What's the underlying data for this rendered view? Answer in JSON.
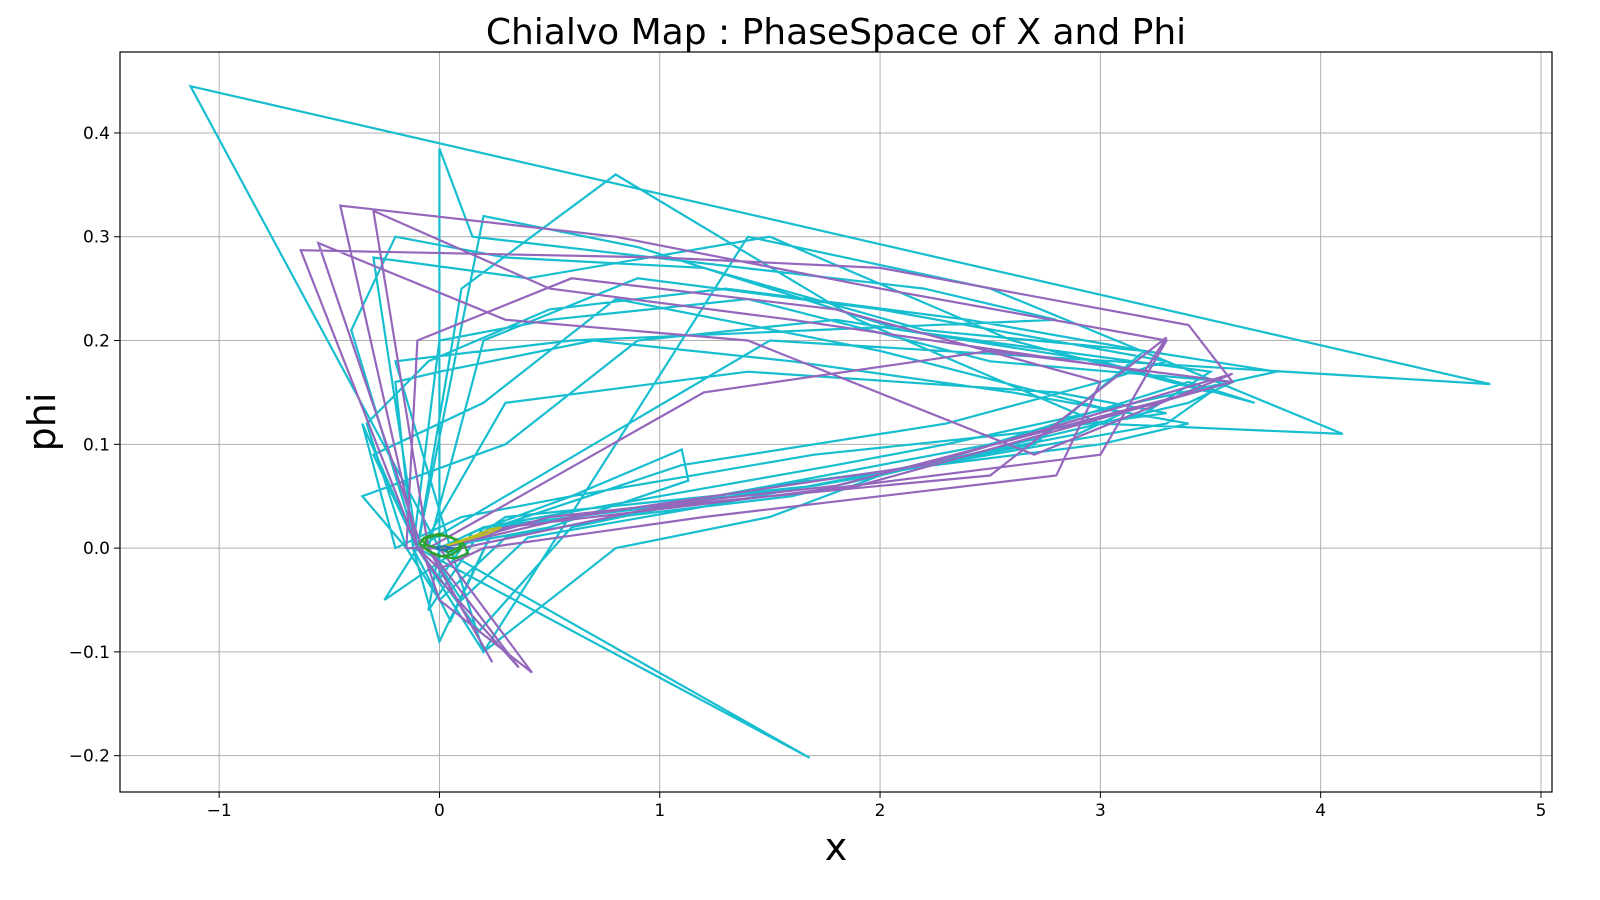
{
  "chart_data": {
    "type": "line",
    "title": "Chialvo Map : PhaseSpace of X and Phi",
    "xlabel": "x",
    "ylabel": "phi",
    "xlim": [
      -1.45,
      5.05
    ],
    "ylim": [
      -0.235,
      0.478
    ],
    "grid": true,
    "legend": "none",
    "xticks": [
      -1,
      0,
      1,
      2,
      3,
      4,
      5
    ],
    "yticks": [
      -0.2,
      -0.1,
      0.0,
      0.1,
      0.2,
      0.3,
      0.4
    ],
    "xtick_labels": [
      "−1",
      "0",
      "1",
      "2",
      "3",
      "4",
      "5"
    ],
    "ytick_labels": [
      "−0.2",
      "−0.1",
      "0.0",
      "0.1",
      "0.2",
      "0.3",
      "0.4"
    ],
    "series": [
      {
        "color": "#17becf",
        "x": [
          0.0,
          0.2,
          1.0,
          2.5,
          3.4,
          3.7,
          3.0,
          1.8,
          0.9,
          0.3,
          -0.35,
          -0.15,
          0.0,
          -1.13,
          4.77,
          1.5,
          -0.1,
          -0.25,
          0.3,
          1.7,
          3.3,
          3.5,
          2.6,
          1.5,
          0.4,
          -0.3,
          -0.1,
          0.0,
          0.0,
          0.15,
          2.2,
          2.8,
          0.6,
          -0.2,
          0.05,
          0.2,
          1.4,
          2.5,
          4.1,
          3.0,
          1.9,
          0.8,
          0.1,
          -0.1,
          -0.35,
          -0.2,
          0.1,
          0.6,
          1.1,
          1.13,
          0.5,
          0.0,
          -0.05,
          0.2,
          1.0,
          1.8,
          2.3,
          3.8,
          3.2,
          2.2,
          1.2,
          0.3,
          -0.2,
          -0.4,
          -0.1,
          0.2,
          0.8,
          1.5,
          2.0,
          3.4,
          3.6,
          2.5,
          1.4,
          0.5,
          0.0,
          -0.12,
          0.05,
          0.25,
          1.7,
          2.7,
          3.2,
          2.4,
          1.3,
          0.5,
          -0.05,
          -0.33,
          -0.15,
          0.0,
          0.3,
          0.8,
          1.6,
          2.2,
          3.2,
          3.5,
          2.1,
          0.9,
          0.2,
          -0.1,
          0.18,
          0.6,
          1.5,
          3.0,
          3.4,
          2.6,
          1.6,
          0.7,
          0.0,
          -0.2,
          -0.12,
          0.0,
          0.25,
          1.1,
          2.3,
          3.0,
          3.3,
          2.0,
          0.9,
          0.2,
          -0.05,
          0.1,
          0.4,
          1.2,
          2.9,
          3.1,
          2.0,
          0.8,
          0.2,
          -0.3,
          -0.1,
          1.68,
          0.0,
          0.0,
          0.15,
          0.6,
          1.7,
          2.6,
          3.3,
          2.8,
          1.4,
          0.3,
          -0.08,
          0.0
        ],
        "y": [
          0.0,
          0.02,
          0.04,
          0.1,
          0.16,
          0.14,
          0.18,
          0.22,
          0.2,
          0.1,
          0.05,
          0.0,
          0.0,
          0.445,
          0.158,
          0.2,
          0.0,
          -0.05,
          0.03,
          0.06,
          0.12,
          0.15,
          0.2,
          0.3,
          0.26,
          0.28,
          0.0,
          -0.03,
          0.385,
          0.3,
          0.25,
          0.22,
          0.2,
          0.18,
          0.0,
          -0.1,
          0.3,
          0.25,
          0.11,
          0.12,
          0.22,
          0.36,
          0.25,
          0.0,
          0.12,
          0.0,
          0.03,
          0.05,
          0.095,
          0.065,
          0.02,
          0.0,
          -0.06,
          0.02,
          0.05,
          0.08,
          0.1,
          0.17,
          0.19,
          0.21,
          0.27,
          0.28,
          0.3,
          0.21,
          0.0,
          -0.1,
          0.0,
          0.03,
          0.07,
          0.14,
          0.16,
          0.18,
          0.24,
          0.22,
          0.2,
          0.0,
          -0.07,
          0.02,
          0.06,
          0.1,
          0.19,
          0.22,
          0.25,
          0.23,
          0.18,
          0.12,
          0.0,
          -0.05,
          0.01,
          0.03,
          0.05,
          0.08,
          0.13,
          0.17,
          0.21,
          0.29,
          0.32,
          0.0,
          -0.08,
          0.02,
          0.06,
          0.1,
          0.12,
          0.15,
          0.18,
          0.2,
          0.17,
          0.16,
          0.0,
          -0.09,
          0.02,
          0.08,
          0.12,
          0.16,
          0.18,
          0.23,
          0.26,
          0.2,
          0.0,
          -0.05,
          0.01,
          0.04,
          0.11,
          0.13,
          0.19,
          0.24,
          0.14,
          0.09,
          0.0,
          -0.202,
          0.0,
          -0.03,
          0.015,
          0.05,
          0.09,
          0.11,
          0.13,
          0.15,
          0.17,
          0.14,
          0.0,
          0.0
        ]
      },
      {
        "color": "#9467bd",
        "x": [
          0.0,
          0.3,
          1.5,
          3.0,
          3.3,
          2.0,
          0.8,
          -0.45,
          -0.1,
          0.0,
          0.24,
          -0.05,
          0.0,
          0.5,
          1.8,
          3.6,
          3.4,
          2.0,
          1.0,
          -0.63,
          -0.1,
          0.0,
          0.36,
          -0.05,
          0.0,
          0.6,
          2.2,
          3.6,
          2.7,
          1.4,
          0.3,
          -0.55,
          -0.08,
          0.0,
          0.42,
          0.0,
          0.1,
          1.0,
          2.5,
          3.3,
          3.2,
          1.6,
          0.5,
          -0.3,
          -0.05,
          0.0,
          0.2,
          1.2,
          2.8,
          3.0,
          1.8,
          0.6,
          -0.1,
          -0.15,
          0.0,
          0.3,
          1.9,
          3.6,
          2.5,
          1.2,
          0.2,
          -0.05,
          0.0
        ],
        "y": [
          0.0,
          0.02,
          0.05,
          0.09,
          0.2,
          0.25,
          0.3,
          0.33,
          0.0,
          -0.02,
          -0.11,
          0.0,
          0.0,
          0.03,
          0.06,
          0.16,
          0.215,
          0.27,
          0.28,
          0.287,
          0.0,
          -0.03,
          -0.115,
          0.0,
          0.0,
          0.03,
          0.08,
          0.168,
          0.09,
          0.2,
          0.22,
          0.294,
          0.0,
          -0.05,
          -0.12,
          0.0,
          0.0,
          0.04,
          0.07,
          0.203,
          0.17,
          0.22,
          0.25,
          0.325,
          0.0,
          -0.02,
          0.0,
          0.03,
          0.07,
          0.16,
          0.23,
          0.26,
          0.2,
          0.0,
          0.0,
          0.02,
          0.06,
          0.16,
          0.19,
          0.15,
          0.03,
          0.0,
          0.0
        ]
      },
      {
        "color": "#2ca02c",
        "x": [
          0.0,
          -0.06,
          -0.08,
          -0.05,
          0.02,
          0.08,
          0.1,
          0.06,
          0.0,
          -0.04,
          -0.07,
          -0.06,
          -0.01,
          0.05,
          0.11,
          0.13,
          0.07,
          0.01,
          -0.05,
          -0.09,
          -0.07,
          0.0,
          0.06,
          0.1,
          0.04,
          0.0
        ],
        "y": [
          0.0,
          0.003,
          0.008,
          0.012,
          0.012,
          0.008,
          0.0,
          -0.006,
          -0.008,
          -0.004,
          0.002,
          0.009,
          0.013,
          0.011,
          0.004,
          -0.005,
          -0.01,
          -0.008,
          -0.003,
          0.004,
          0.01,
          0.014,
          0.01,
          0.002,
          -0.004,
          0.0
        ]
      },
      {
        "color": "#bcbd22",
        "x": [
          0.0,
          0.08,
          0.16,
          0.23,
          0.28,
          0.22,
          0.12,
          0.04,
          0.0
        ],
        "y": [
          0.0,
          0.006,
          0.012,
          0.018,
          0.02,
          0.014,
          0.008,
          0.003,
          0.0
        ]
      },
      {
        "color": "#1f77b4",
        "x": [
          -0.02,
          0.02,
          0.05,
          0.03,
          -0.01,
          -0.02
        ],
        "y": [
          0.0,
          0.002,
          0.0,
          -0.002,
          -0.001,
          0.0
        ]
      }
    ]
  }
}
